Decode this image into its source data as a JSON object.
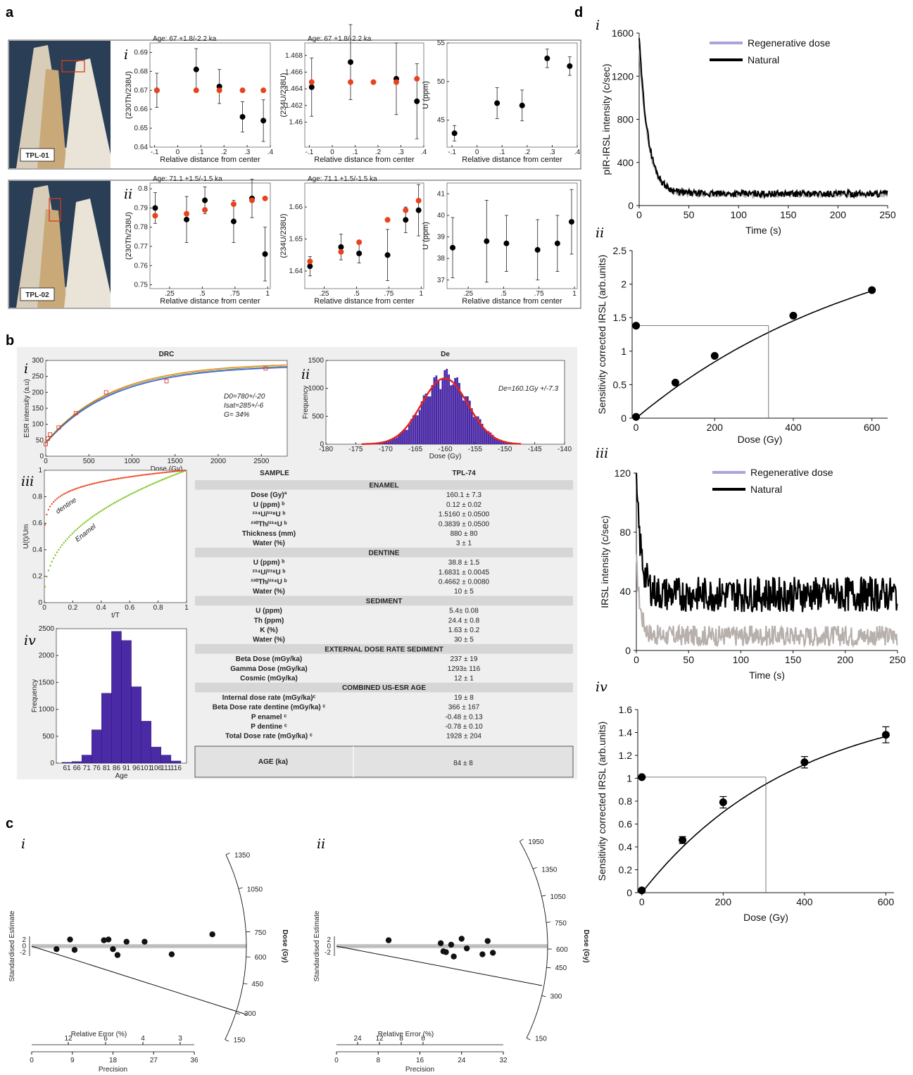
{
  "panel_letters": {
    "a": "a",
    "b": "b",
    "c": "c",
    "d": "d"
  },
  "sub": {
    "i": "i",
    "ii": "ii",
    "iii": "iii",
    "iv": "iv"
  },
  "photos": {
    "tpl01": "TPL-01",
    "tpl02": "TPL-02"
  },
  "colors": {
    "black": "#000000",
    "red": "#e8431c",
    "purple": "#4b2aa6",
    "green": "#7bc41f",
    "regen": "#a9a4d9",
    "grey": "#b7b0ad",
    "orange": "#f08a1c"
  },
  "chart_data": [
    {
      "id": "a-i-1",
      "type": "scatter",
      "title": "Age: 67 +1.8/-2.2 ka",
      "xlabel": "Relative distance from center",
      "ylabel": "(230Th/238U)",
      "xlim": [
        -0.12,
        0.4
      ],
      "ylim": [
        0.64,
        0.695
      ],
      "xticks": [
        -0.1,
        0,
        0.1,
        0.2,
        0.3,
        0.4
      ],
      "yticks": [
        0.64,
        0.65,
        0.66,
        0.67,
        0.68,
        0.69
      ],
      "series": [
        {
          "color": "black",
          "x": [
            -0.09,
            0.08,
            0.18,
            0.28,
            0.37
          ],
          "y": [
            0.67,
            0.681,
            0.672,
            0.656,
            0.654
          ],
          "err": [
            0.009,
            0.011,
            0.009,
            0.008,
            0.011
          ]
        },
        {
          "color": "red",
          "x": [
            -0.09,
            0.08,
            0.18,
            0.28,
            0.37
          ],
          "y": [
            0.67,
            0.67,
            0.67,
            0.67,
            0.67
          ]
        }
      ]
    },
    {
      "id": "a-i-2",
      "type": "scatter",
      "title": "Age: 67 +1.8/-2.2 ka",
      "xlabel": "Relative distance from center",
      "ylabel": "(234U/238U)",
      "xlim": [
        -0.12,
        0.4
      ],
      "ylim": [
        1.457,
        1.4695
      ],
      "xticks": [
        -0.1,
        0,
        0.1,
        0.2,
        0.3,
        0.4
      ],
      "yticks": [
        1.46,
        1.462,
        1.464,
        1.466,
        1.468
      ],
      "series": [
        {
          "color": "black",
          "x": [
            -0.09,
            0.08,
            0.28,
            0.37
          ],
          "y": [
            1.4642,
            1.4672,
            1.4652,
            1.4625
          ],
          "err": [
            0.0035,
            0.0045,
            0.0043,
            0.0045
          ]
        },
        {
          "color": "red",
          "x": [
            -0.09,
            0.08,
            0.18,
            0.28,
            0.37
          ],
          "y": [
            1.4648,
            1.4648,
            1.4648,
            1.4648,
            1.4652
          ]
        }
      ]
    },
    {
      "id": "a-i-3",
      "type": "scatter",
      "xlabel": "Relative distance from center",
      "ylabel": "U (ppm)",
      "xlim": [
        -0.12,
        0.4
      ],
      "ylim": [
        41.5,
        55
      ],
      "xticks": [
        -0.1,
        0,
        0.1,
        0.2,
        0.3,
        0.4
      ],
      "yticks": [
        45,
        50,
        55
      ],
      "series": [
        {
          "color": "black",
          "x": [
            -0.09,
            0.08,
            0.18,
            0.28,
            0.37
          ],
          "y": [
            43.3,
            47.2,
            46.9,
            53.0,
            52.0
          ],
          "err": [
            1.0,
            2.0,
            2.0,
            1.2,
            1.2
          ]
        }
      ]
    },
    {
      "id": "a-ii-1",
      "type": "scatter",
      "title": "Age: 71.1 +1.5/-1.5 ka",
      "xlabel": "Relative distance from center",
      "ylabel": "(230Th/238U)",
      "xlim": [
        0.1,
        1.02
      ],
      "ylim": [
        0.748,
        0.803
      ],
      "xticks": [
        0.25,
        0.5,
        0.75,
        1.0
      ],
      "yticks": [
        0.75,
        0.76,
        0.77,
        0.78,
        0.79,
        0.8
      ],
      "series": [
        {
          "color": "black",
          "x": [
            0.14,
            0.38,
            0.52,
            0.74,
            0.88,
            0.98
          ],
          "y": [
            0.79,
            0.784,
            0.794,
            0.783,
            0.795,
            0.766
          ],
          "err": [
            0.008,
            0.012,
            0.007,
            0.011,
            0.01,
            0.014
          ]
        },
        {
          "color": "red",
          "x": [
            0.14,
            0.38,
            0.52,
            0.74,
            0.88,
            0.98
          ],
          "y": [
            0.786,
            0.787,
            0.789,
            0.792,
            0.794,
            0.795
          ]
        }
      ]
    },
    {
      "id": "a-ii-2",
      "type": "scatter",
      "title": "Age: 71.1 +1.5/-1.5 ka",
      "xlabel": "Relative distance from center",
      "ylabel": "(234U/238U)",
      "xlim": [
        0.1,
        1.02
      ],
      "ylim": [
        1.6345,
        1.6675
      ],
      "xticks": [
        0.25,
        0.5,
        0.75,
        1.0
      ],
      "yticks": [
        1.64,
        1.65,
        1.66
      ],
      "series": [
        {
          "color": "black",
          "x": [
            0.14,
            0.38,
            0.52,
            0.74,
            0.88,
            0.98
          ],
          "y": [
            1.6415,
            1.6475,
            1.6455,
            1.645,
            1.656,
            1.659
          ],
          "err": [
            0.003,
            0.004,
            0.003,
            0.008,
            0.004,
            0.008
          ]
        },
        {
          "color": "red",
          "x": [
            0.14,
            0.38,
            0.52,
            0.74,
            0.88,
            0.98
          ],
          "y": [
            1.643,
            1.646,
            1.649,
            1.656,
            1.659,
            1.662
          ]
        }
      ]
    },
    {
      "id": "a-ii-3",
      "type": "scatter",
      "xlabel": "Relative distance from center",
      "ylabel": "U (ppm)",
      "xlim": [
        0.1,
        1.02
      ],
      "ylim": [
        36.6,
        41.5
      ],
      "xticks": [
        0.25,
        0.5,
        0.75,
        1.0
      ],
      "yticks": [
        37,
        38,
        39,
        40,
        41
      ],
      "series": [
        {
          "color": "black",
          "x": [
            0.14,
            0.38,
            0.52,
            0.74,
            0.88,
            0.98
          ],
          "y": [
            38.5,
            38.8,
            38.7,
            38.4,
            38.7,
            39.7
          ],
          "err": [
            1.4,
            1.9,
            1.3,
            1.4,
            1.3,
            1.5
          ]
        }
      ]
    },
    {
      "id": "b-i",
      "type": "line",
      "title": "DRC",
      "xlabel": "Dose (Gy)",
      "ylabel": "ESR intensity (a.u)",
      "xlim": [
        0,
        2800
      ],
      "ylim": [
        0,
        300
      ],
      "xticks": [
        0,
        500,
        1000,
        1500,
        2000,
        2500
      ],
      "yticks": [
        0,
        50,
        100,
        150,
        200,
        250,
        300
      ],
      "points": {
        "x": [
          0,
          25,
          50,
          150,
          350,
          700,
          1400,
          2550
        ],
        "y": [
          38,
          55,
          68,
          90,
          135,
          200,
          235,
          275
        ]
      },
      "annotations": [
        "D0=780+/-20",
        "Isat=285+/-6",
        "G= 34%"
      ]
    },
    {
      "id": "b-ii",
      "type": "bar",
      "title": "De",
      "xlabel": "Dose (Gy)",
      "ylabel": "Frequency",
      "xlim": [
        -180,
        -140
      ],
      "ylim": [
        0,
        1500
      ],
      "xticks": [
        -180,
        -175,
        -170,
        -165,
        -160,
        -155,
        -150,
        -145,
        -140
      ],
      "yticks": [
        0,
        500,
        1000,
        1500
      ],
      "gauss": {
        "mu": -160.1,
        "sigma": 3.9,
        "peak": 1180
      },
      "annotations": [
        "De=160.1Gy +/-7.3"
      ]
    },
    {
      "id": "b-iii",
      "type": "line",
      "xlabel": "t/T",
      "ylabel": "U(t)/Um",
      "xlim": [
        0,
        1
      ],
      "ylim": [
        0,
        1
      ],
      "xticks": [
        0,
        0.2,
        0.4,
        0.6,
        0.8,
        1
      ],
      "yticks": [
        0,
        0.2,
        0.4,
        0.6,
        0.8,
        1
      ],
      "series": [
        {
          "name": "dentine",
          "p": 0.4
        },
        {
          "name": "Enamel",
          "p": 0.1
        }
      ]
    },
    {
      "id": "b-iv",
      "type": "bar",
      "xlabel": "Age",
      "ylabel": "Frequency",
      "ylim": [
        0,
        2500
      ],
      "yticks": [
        0,
        500,
        1000,
        1500,
        2000,
        2500
      ],
      "categories": [
        "61",
        "66",
        "71",
        "76",
        "81",
        "86",
        "91",
        "96",
        "101",
        "106",
        "111",
        "116"
      ],
      "values": [
        15,
        30,
        150,
        620,
        1300,
        2450,
        2280,
        1420,
        780,
        300,
        150,
        40
      ]
    },
    {
      "id": "c-i",
      "type": "scatter",
      "xlabel": "Precision",
      "ylabel": "Standardised Estimate",
      "axis_top": "Relative Error (%)",
      "radial_label": "Dose (Gy)",
      "x": [
        5.5,
        8.5,
        9.5,
        16,
        17,
        18,
        19,
        21,
        25,
        31,
        40
      ],
      "y": [
        -0.4,
        0.9,
        -0.5,
        0.8,
        0.9,
        -0.4,
        -1.2,
        0.6,
        0.6,
        -1.1,
        1.6
      ],
      "xticks": [
        0,
        9,
        18,
        27,
        36
      ],
      "re_ticks": [
        "12",
        "6",
        "4",
        "3"
      ],
      "dose_ticks": [
        "1350",
        "1050",
        "750",
        "600",
        "450",
        "300",
        "150"
      ],
      "yticks": [
        "2",
        "0",
        "-2"
      ]
    },
    {
      "id": "c-ii",
      "type": "scatter",
      "xlabel": "Precision",
      "ylabel": "Standardised Estimate",
      "axis_top": "Relative Error (%)",
      "radial_label": "Dose (Gy)",
      "x": [
        10,
        20,
        20.5,
        21,
        22,
        22.5,
        24,
        25,
        28,
        29,
        30
      ],
      "y": [
        0.8,
        0.4,
        -0.7,
        -0.8,
        0.2,
        -1.4,
        1.0,
        -0.3,
        -1.1,
        0.7,
        -0.9
      ],
      "xticks": [
        0,
        8,
        16,
        24,
        32
      ],
      "re_ticks": [
        "24",
        "12",
        "8",
        "6"
      ],
      "dose_ticks": [
        "1950",
        "1350",
        "1050",
        "750",
        "600",
        "450",
        "300",
        "150"
      ],
      "yticks": [
        "2",
        "0",
        "-2"
      ]
    },
    {
      "id": "d-i",
      "type": "line",
      "xlabel": "Time (s)",
      "ylabel": "pIR-IRSL intensity (c/sec)",
      "xlim": [
        0,
        250
      ],
      "ylim": [
        0,
        1600
      ],
      "xticks": [
        0,
        50,
        100,
        150,
        200,
        250
      ],
      "yticks": [
        0,
        400,
        800,
        1200,
        1600
      ],
      "series": [
        {
          "name": "Regenerative dose",
          "start": 1450,
          "tau": 9,
          "floor": 100
        },
        {
          "name": "Natural",
          "start": 1560,
          "tau": 9,
          "floor": 110
        }
      ]
    },
    {
      "id": "d-ii",
      "type": "scatter",
      "xlabel": "Dose (Gy)",
      "ylabel": "Sensitivity corrected IRSL (arb.units)",
      "xlim": [
        -10,
        640
      ],
      "ylim": [
        0,
        2.5
      ],
      "xticks": [
        0,
        200,
        400,
        600
      ],
      "yticks": [
        0,
        0.5,
        1,
        1.5,
        2,
        2.5
      ],
      "x": [
        0,
        0,
        100,
        200,
        400,
        600
      ],
      "y": [
        0.02,
        1.38,
        0.53,
        0.93,
        1.53,
        1.91
      ],
      "fit": {
        "a": 3.09,
        "b": 630
      },
      "de": 337
    },
    {
      "id": "d-iii",
      "type": "line",
      "xlabel": "Time (s)",
      "ylabel": "IRSL intensity (c/sec)",
      "xlim": [
        0,
        250
      ],
      "ylim": [
        0,
        120
      ],
      "xticks": [
        0,
        50,
        100,
        150,
        200,
        250
      ],
      "yticks": [
        0,
        40,
        80,
        120
      ],
      "series": [
        {
          "name": "Regenerative dose",
          "start": 60,
          "tau": 4,
          "floor": 10
        },
        {
          "name": "Natural",
          "start": 110,
          "tau": 5,
          "floor": 38
        }
      ]
    },
    {
      "id": "d-iv",
      "type": "scatter",
      "xlabel": "Dose (Gy)",
      "ylabel": "Sensitivity corrected IRSL (arb.units)",
      "xlim": [
        -10,
        620
      ],
      "ylim": [
        0,
        1.6
      ],
      "xticks": [
        0,
        200,
        400,
        600
      ],
      "yticks": [
        0,
        0.2,
        0.4,
        0.6,
        0.8,
        1,
        1.2,
        1.4,
        1.6
      ],
      "x": [
        0,
        0,
        100,
        200,
        400,
        600
      ],
      "y": [
        0.02,
        1.01,
        0.46,
        0.79,
        1.14,
        1.38
      ],
      "err": [
        0,
        0,
        0.03,
        0.05,
        0.05,
        0.07
      ],
      "fit": {
        "a": 1.72,
        "b": 380
      },
      "de": 305
    }
  ],
  "table": {
    "h_sample": "SAMPLE",
    "h_id": "TPL-74",
    "rows": [
      {
        "s": "ENAMEL"
      },
      {
        "l": "Dose (Gy)ª",
        "v": "160.1 ± 7.3"
      },
      {
        "l": "U (ppm) ᵇ",
        "v": "0.12 ± 0.02"
      },
      {
        "l": "²³⁴U/²³⁸U ᵇ",
        "v": "1.5160 ± 0.0500"
      },
      {
        "l": "²³⁰Th/²³⁴U ᵇ",
        "v": "0.3839 ± 0.0500"
      },
      {
        "l": "Thickness (mm)",
        "v": "880 ± 80"
      },
      {
        "l": "Water (%)",
        "v": "3 ± 1"
      },
      {
        "s": "DENTINE"
      },
      {
        "l": "U (ppm) ᵇ",
        "v": "38.8 ± 1.5"
      },
      {
        "l": "²³⁴U/²³⁸U ᵇ",
        "v": "1.6831 ± 0.0045"
      },
      {
        "l": "²³⁰Th/²³⁴U ᵇ",
        "v": "0.4662 ± 0.0080"
      },
      {
        "l": "Water (%)",
        "v": "10 ± 5"
      },
      {
        "s": "SEDIMENT"
      },
      {
        "l": "U (ppm)",
        "v": "5.4± 0.08"
      },
      {
        "l": "Th (ppm)",
        "v": "24.4 ± 0.8"
      },
      {
        "l": "K (%)",
        "v": "1.63 ± 0.2"
      },
      {
        "l": "Water (%)",
        "v": "30 ± 5"
      },
      {
        "s": "EXTERNAL DOSE RATE SEDIMENT"
      },
      {
        "l": "Beta Dose (mGy/ka)",
        "v": "237 ± 19"
      },
      {
        "l": "Gamma Dose (mGy/ka)",
        "v": "1293± 116"
      },
      {
        "l": "Cosmic (mGy/ka)",
        "v": "12 ± 1"
      },
      {
        "s": "COMBINED US-ESR AGE"
      },
      {
        "l": "Internal dose rate (mGy/ka)ᶜ",
        "v": "19 ± 8"
      },
      {
        "l": "Beta Dose rate dentine (mGy/ka) ᶜ",
        "v": "366 ± 167"
      },
      {
        "l": "P enamel ᶜ",
        "v": "-0.48 ± 0.13"
      },
      {
        "l": "P dentine ᶜ",
        "v": "-0.78 ± 0.10"
      },
      {
        "l": "Total Dose rate (mGy/ka) ᶜ",
        "v": "1928 ± 204"
      }
    ],
    "age_label": "AGE (ka)",
    "age_value": "84 ± 8"
  }
}
